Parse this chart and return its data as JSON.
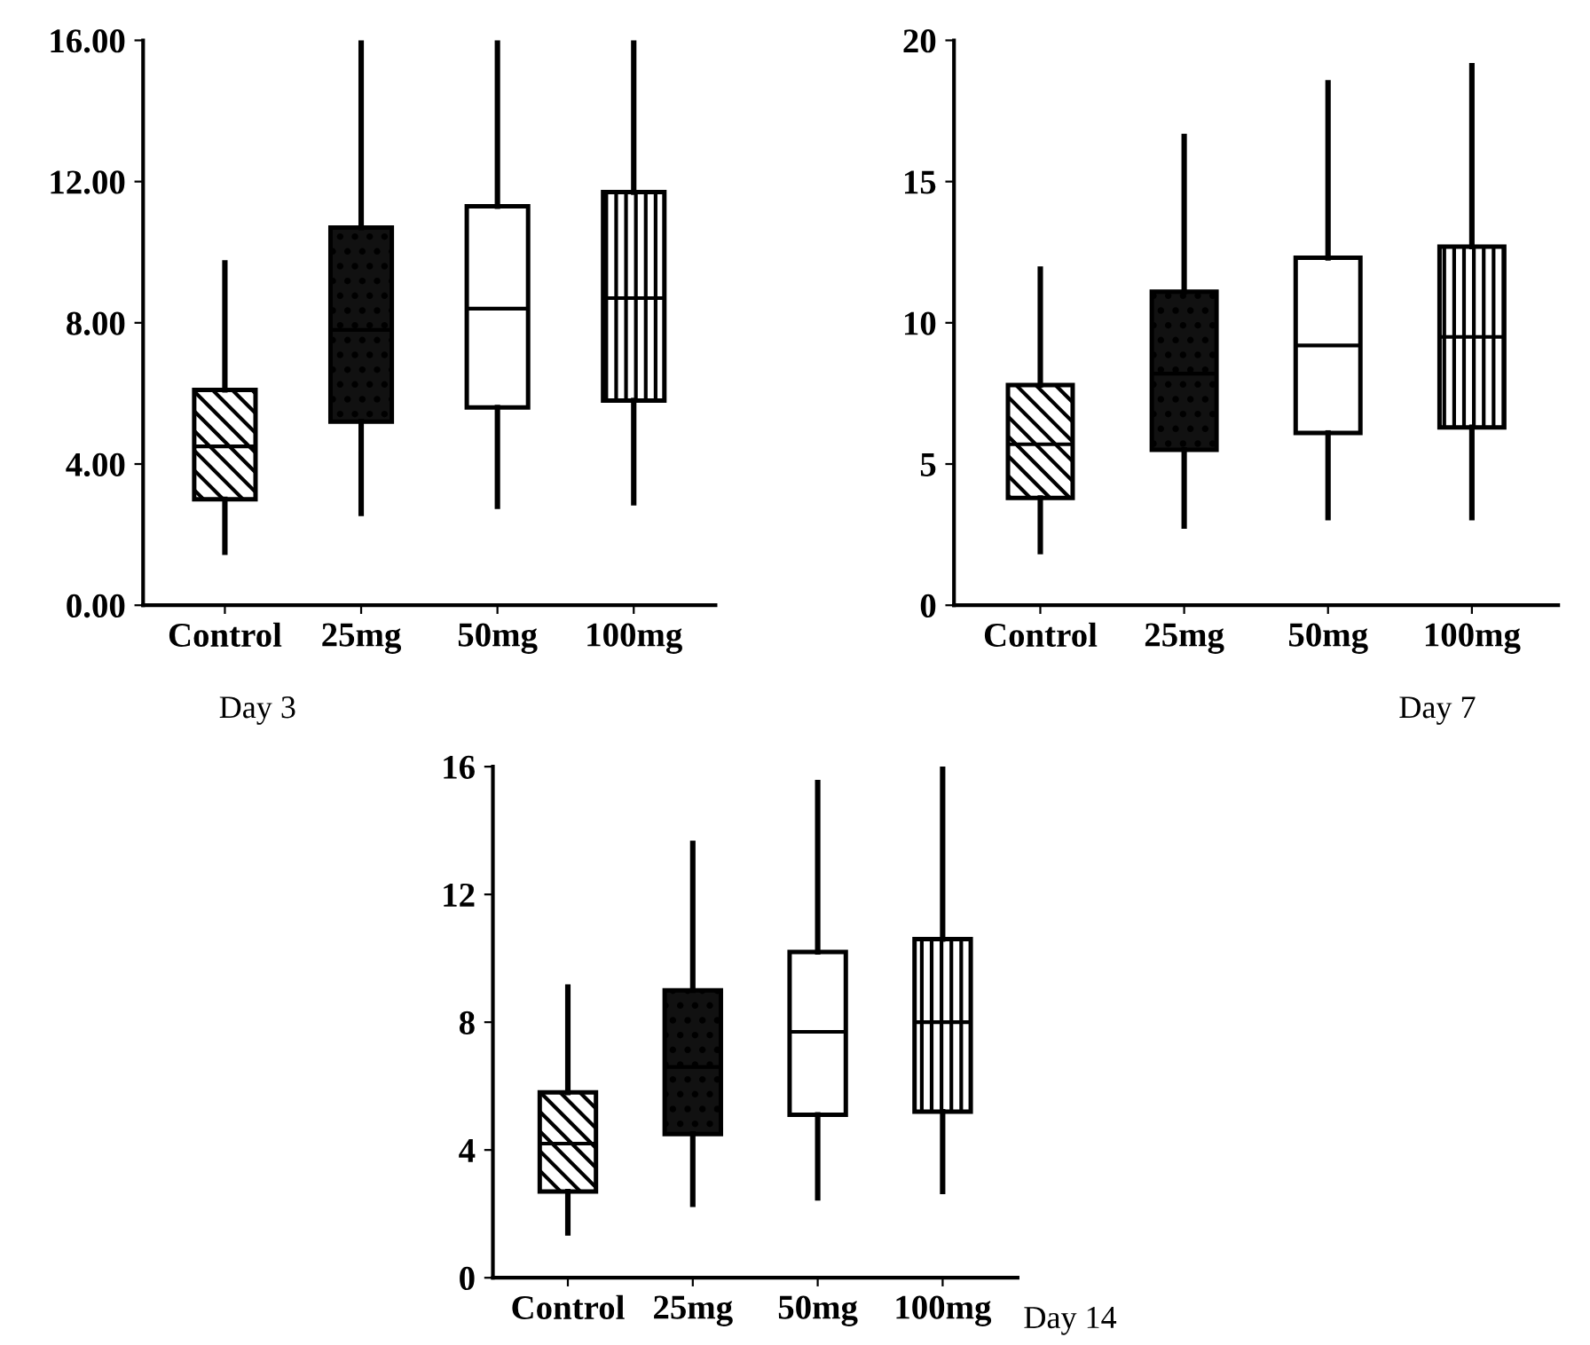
{
  "chart_data": [
    {
      "type": "box",
      "xlabel": "Day 3",
      "categories": [
        "Control",
        "25mg",
        "50mg",
        "100mg"
      ],
      "boxes": [
        {
          "low": 1.5,
          "q1": 3.0,
          "median": 4.5,
          "q3": 6.1,
          "high": 9.7
        },
        {
          "low": 2.6,
          "q1": 5.2,
          "median": 7.8,
          "q3": 10.7,
          "high": 16.0
        },
        {
          "low": 2.8,
          "q1": 5.6,
          "median": 8.4,
          "q3": 11.3,
          "high": 16.0
        },
        {
          "low": 2.9,
          "q1": 5.8,
          "median": 8.7,
          "q3": 11.7,
          "high": 16.0
        }
      ],
      "ylim": [
        0,
        16
      ],
      "yticks": [
        {
          "value": 0,
          "label": "0.00"
        },
        {
          "value": 4,
          "label": "4.00"
        },
        {
          "value": 8,
          "label": "8.00"
        },
        {
          "value": 12,
          "label": "12.00"
        },
        {
          "value": 16,
          "label": "16.00"
        }
      ],
      "grid": false,
      "legend": false
    },
    {
      "type": "box",
      "xlabel": "Day 7",
      "categories": [
        "Control",
        "25mg",
        "50mg",
        "100mg"
      ],
      "boxes": [
        {
          "low": 1.9,
          "q1": 3.8,
          "median": 5.7,
          "q3": 7.8,
          "high": 11.9
        },
        {
          "low": 2.8,
          "q1": 5.5,
          "median": 8.2,
          "q3": 11.1,
          "high": 16.6
        },
        {
          "low": 3.1,
          "q1": 6.1,
          "median": 9.2,
          "q3": 12.3,
          "high": 18.5
        },
        {
          "low": 3.1,
          "q1": 6.3,
          "median": 9.5,
          "q3": 12.7,
          "high": 19.1
        }
      ],
      "ylim": [
        0,
        20
      ],
      "yticks": [
        0,
        5,
        10,
        15,
        20
      ],
      "grid": false,
      "legend": false
    },
    {
      "type": "box",
      "xlabel": "Day 14",
      "categories": [
        "Control",
        "25mg",
        "50mg",
        "100mg"
      ],
      "boxes": [
        {
          "low": 1.4,
          "q1": 2.7,
          "median": 4.2,
          "q3": 5.8,
          "high": 9.1
        },
        {
          "low": 2.3,
          "q1": 4.5,
          "median": 6.6,
          "q3": 9.0,
          "high": 13.6
        },
        {
          "low": 2.5,
          "q1": 5.1,
          "median": 7.7,
          "q3": 10.2,
          "high": 15.5
        },
        {
          "low": 2.7,
          "q1": 5.2,
          "median": 8.0,
          "q3": 10.6,
          "high": 16.0
        }
      ],
      "ylim": [
        0,
        16
      ],
      "yticks": [
        0,
        4,
        8,
        12,
        16
      ],
      "grid": false,
      "legend": false
    }
  ]
}
